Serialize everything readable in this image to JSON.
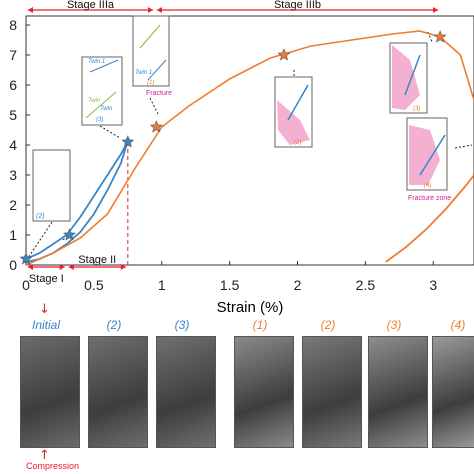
{
  "chart_data": {
    "type": "line",
    "title": "",
    "xlabel": "Strain (%)",
    "ylabel": "",
    "xlim": [
      0,
      3.3
    ],
    "ylim": [
      0,
      8.3
    ],
    "x_ticks": [
      "0",
      "0.5",
      "1",
      "1.5",
      "2",
      "2.5",
      "3"
    ],
    "y_ticks": [
      "0",
      "1",
      "2",
      "3",
      "4",
      "5",
      "6",
      "7",
      "8"
    ],
    "colors": {
      "blue": "#3a85c8",
      "orange": "#ee7d31",
      "red": "#e8202a"
    },
    "stages": [
      {
        "label": "Stage I",
        "from": 0,
        "to": 0.3
      },
      {
        "label": "Stage II",
        "from": 0.3,
        "to": 0.75
      },
      {
        "label": "Stage IIIa",
        "from": 0,
        "to": 0.95
      },
      {
        "label": "Stage IIIb",
        "from": 0.95,
        "to": 3.05
      }
    ],
    "series": [
      {
        "color": "#3a85c8",
        "x": [
          0,
          0.1,
          0.2,
          0.3,
          0.4,
          0.5,
          0.6,
          0.7,
          0.75
        ],
        "y": [
          0.2,
          0.4,
          0.7,
          1.0,
          1.6,
          2.3,
          3.0,
          3.7,
          4.1
        ]
      },
      {
        "color": "#3a85c8",
        "x": [
          0,
          0.1,
          0.2,
          0.3,
          0.4,
          0.5,
          0.6,
          0.7,
          0.74
        ],
        "y": [
          0.1,
          0.2,
          0.4,
          0.7,
          1.1,
          1.7,
          2.5,
          3.4,
          4.0
        ]
      },
      {
        "color": "#ee7d31",
        "x": [
          0,
          0.2,
          0.4,
          0.6,
          0.8,
          1.0,
          1.2,
          1.5,
          1.8,
          2.1,
          2.4,
          2.7,
          2.9,
          3.05,
          3.2,
          3.3
        ],
        "y": [
          0.0,
          0.4,
          0.9,
          1.7,
          3.2,
          4.6,
          5.3,
          6.2,
          6.9,
          7.3,
          7.5,
          7.7,
          7.8,
          7.6,
          7.0,
          5.5
        ]
      },
      {
        "color": "#ee7d31",
        "x": [
          2.65,
          2.8,
          2.95,
          3.1,
          3.25,
          3.3
        ],
        "y": [
          0.1,
          0.6,
          1.2,
          1.9,
          2.7,
          3.0
        ]
      }
    ],
    "markers": [
      {
        "label": "(2)",
        "series": "blue",
        "x": 0.0,
        "y": 0.2
      },
      {
        "label": "(2)",
        "series": "blue",
        "x": 0.32,
        "y": 1.0
      },
      {
        "label": "(3)",
        "series": "blue",
        "x": 0.75,
        "y": 4.1
      },
      {
        "label": "(1)",
        "series": "orange",
        "x": 0.96,
        "y": 4.6
      },
      {
        "label": "(2)",
        "series": "orange",
        "x": 1.9,
        "y": 7.0
      },
      {
        "label": "(3)",
        "series": "orange",
        "x": 3.05,
        "y": 7.6
      }
    ],
    "annotations": {
      "twin1": "Twin 1",
      "twin": "Twin",
      "twin1b": "Twin 1",
      "fracture": "Fracture",
      "fracture_zone": "Fracture zone",
      "inset_2": "(2)",
      "inset_3": "(3)",
      "inset_1": "(1)",
      "inset_o2": "(2)",
      "inset_4": "(4)"
    }
  },
  "images": {
    "labels": [
      {
        "text": "Initial",
        "color": "#3a85c8"
      },
      {
        "text": "(2)",
        "color": "#3a85c8"
      },
      {
        "text": "(3)",
        "color": "#3a85c8"
      },
      {
        "text": "(1)",
        "color": "#ee7d31"
      },
      {
        "text": "(2)",
        "color": "#ee7d31"
      },
      {
        "text": "(3)",
        "color": "#ee7d31"
      },
      {
        "text": "(4)",
        "color": "#ee7d31"
      }
    ],
    "compression": "Compression"
  }
}
